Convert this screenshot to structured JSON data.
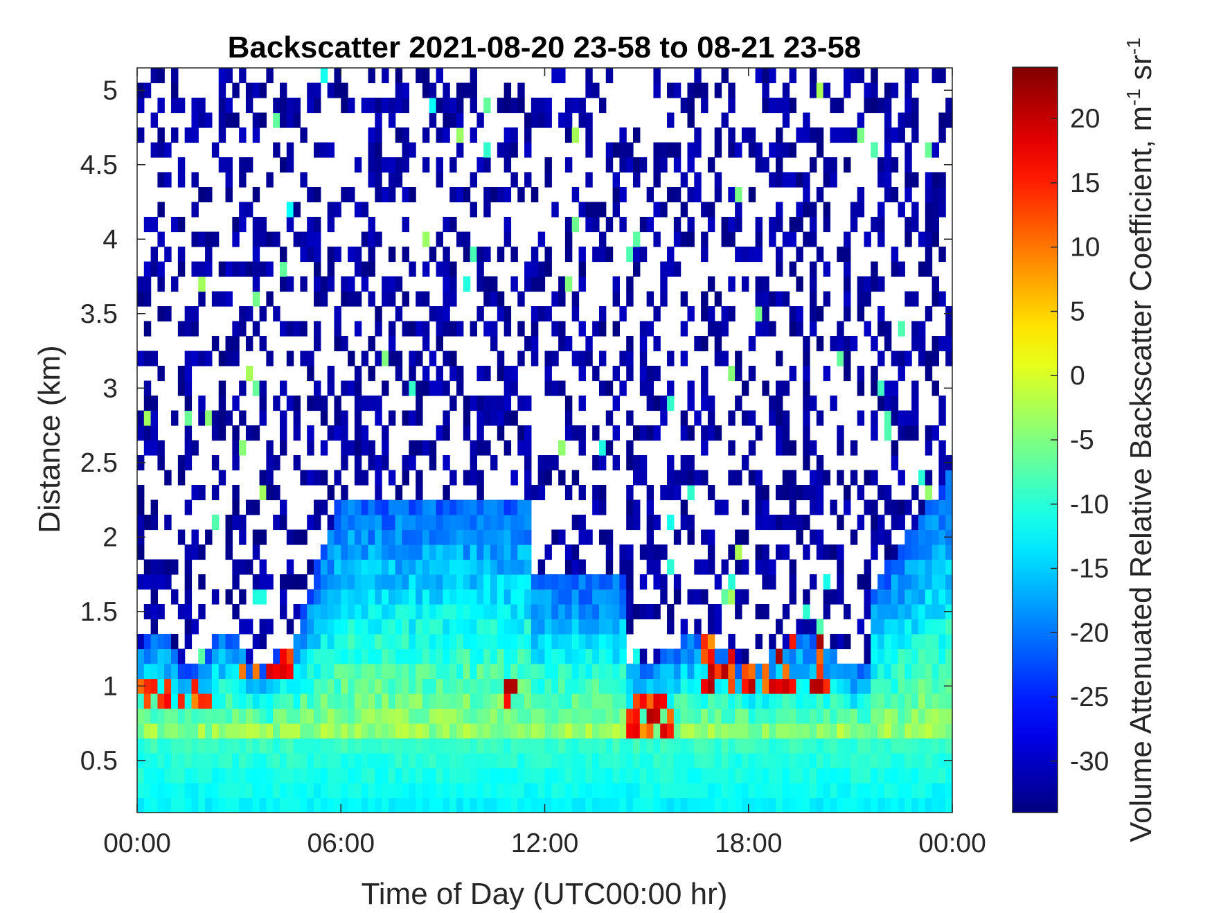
{
  "chart_data": {
    "type": "heatmap",
    "title": "Backscatter 2021-08-20 23-58 to 08-21 23-58",
    "xlabel": "Time of Day (UTC00:00 hr)",
    "ylabel": "Distance (km)",
    "xlim": [
      0,
      24
    ],
    "ylim": [
      0.15,
      5.15
    ],
    "xticks": [
      {
        "value": 0,
        "label": "00:00"
      },
      {
        "value": 6,
        "label": "06:00"
      },
      {
        "value": 12,
        "label": "12:00"
      },
      {
        "value": 18,
        "label": "18:00"
      },
      {
        "value": 24,
        "label": "00:00"
      }
    ],
    "yticks": [
      {
        "value": 0.5,
        "label": "0.5"
      },
      {
        "value": 1,
        "label": "1"
      },
      {
        "value": 1.5,
        "label": "1.5"
      },
      {
        "value": 2,
        "label": "2"
      },
      {
        "value": 2.5,
        "label": "2.5"
      },
      {
        "value": 3,
        "label": "3"
      },
      {
        "value": 3.5,
        "label": "3.5"
      },
      {
        "value": 4,
        "label": "4"
      },
      {
        "value": 4.5,
        "label": "4.5"
      },
      {
        "value": 5,
        "label": "5"
      }
    ],
    "colorbar": {
      "label_main": "Volume Attenuated Relative Backscatter Coefficient, m",
      "label_sup1": "-1",
      "label_mid": " sr",
      "label_sup2": "-1",
      "colormap": "jet",
      "clim": [
        -34,
        24
      ],
      "ticks": [
        -30,
        -25,
        -20,
        -15,
        -10,
        -5,
        0,
        5,
        10,
        15,
        20
      ],
      "tick_labels": [
        "-30",
        "-25",
        "-20",
        "-15",
        "-10",
        "-5",
        "0",
        "5",
        "10",
        "15",
        "20"
      ]
    },
    "grid": false,
    "time_step_hr": 0.2,
    "range_step_km": 0.1,
    "regions": {
      "surface_layer_km": [
        0.15,
        0.7
      ],
      "boundary_layer_top_km": {
        "early": 1.2,
        "morning": 2.3,
        "midday": 1.7,
        "evening": 2.4
      },
      "strong_return_layer_km": [
        0.7,
        1.3
      ],
      "noise_floor_value": -32
    }
  }
}
